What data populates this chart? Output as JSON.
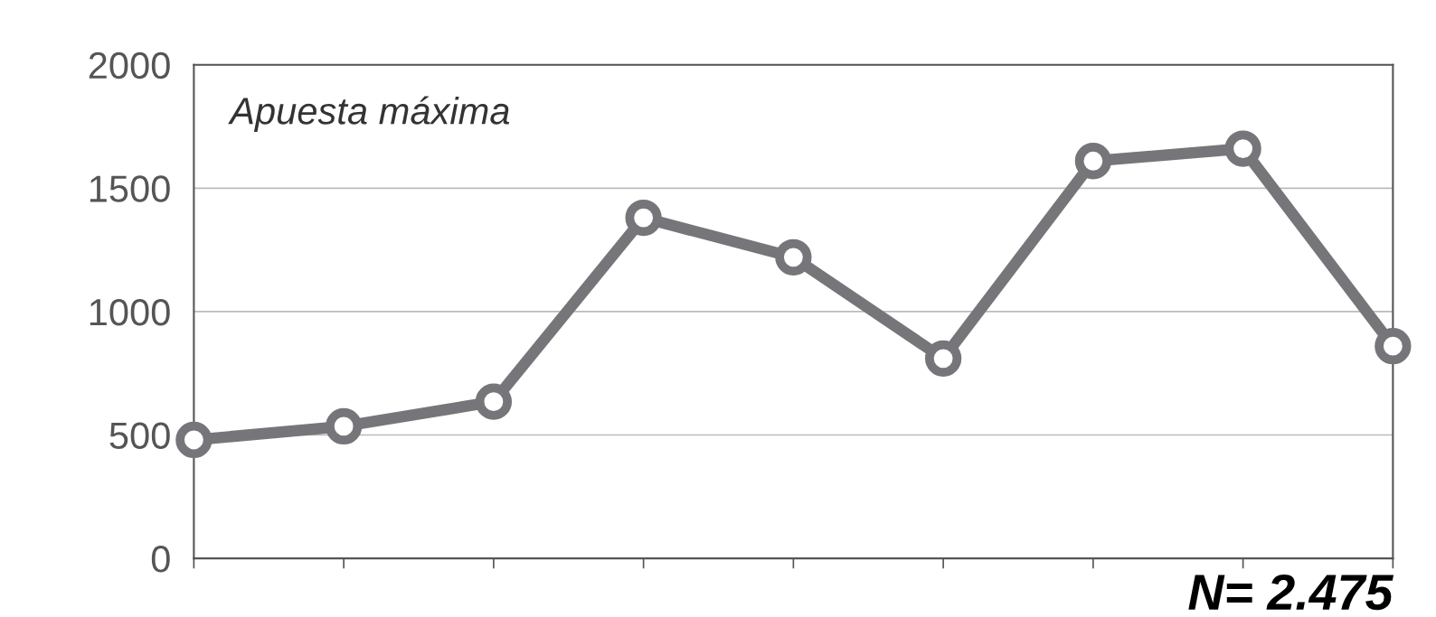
{
  "chart_data": {
    "type": "line",
    "title": "Apuesta máxima",
    "categories": [
      null,
      null,
      null,
      null,
      null,
      null,
      null,
      null,
      null
    ],
    "series": [
      {
        "color": "#76767a",
        "values": [
          480,
          535,
          635,
          1380,
          1220,
          810,
          1610,
          1660,
          860
        ]
      }
    ],
    "ylim": [
      0,
      2000
    ],
    "yticks": [
      0,
      500,
      1000,
      1500,
      2000
    ],
    "grid": "y",
    "marker": "circle",
    "line_style": "solid",
    "annotations": [
      "N= 2.475"
    ]
  }
}
